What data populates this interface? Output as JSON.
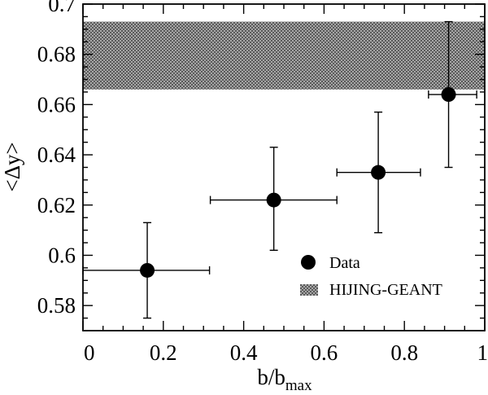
{
  "chart_data": {
    "type": "scatter",
    "xlabel": "b/b",
    "xlabel_sub": "max",
    "ylabel": "<Δy>",
    "xlim": [
      0,
      1
    ],
    "ylim": [
      0.57,
      0.7
    ],
    "xticks": [
      0,
      0.2,
      0.4,
      0.6,
      0.8,
      1
    ],
    "xtick_labels": [
      "0",
      "0.2",
      "0.4",
      "0.6",
      "0.8",
      "1"
    ],
    "yticks": [
      0.58,
      0.6,
      0.62,
      0.64,
      0.66,
      0.68,
      0.7
    ],
    "ytick_labels": [
      "0.58",
      "0.6",
      "0.62",
      "0.64",
      "0.66",
      "0.68",
      "0.7"
    ],
    "grid": false,
    "legend_position": "bottom-right",
    "series": [
      {
        "name": "Data",
        "marker": "filled-circle",
        "color": "#000000",
        "points": [
          {
            "x": 0.16,
            "y": 0.594,
            "x_lo": 0.0,
            "x_hi": 0.315,
            "y_lo": 0.575,
            "y_hi": 0.613
          },
          {
            "x": 0.475,
            "y": 0.622,
            "x_lo": 0.317,
            "x_hi": 0.632,
            "y_lo": 0.602,
            "y_hi": 0.643
          },
          {
            "x": 0.735,
            "y": 0.633,
            "x_lo": 0.632,
            "x_hi": 0.84,
            "y_lo": 0.609,
            "y_hi": 0.657
          },
          {
            "x": 0.91,
            "y": 0.664,
            "x_lo": 0.86,
            "x_hi": 0.98,
            "y_lo": 0.635,
            "y_hi": 0.693
          }
        ]
      },
      {
        "name": "HIJING-GEANT",
        "type": "band",
        "fill": "hatched",
        "color": "#6a6a6a",
        "x_range": [
          0,
          1
        ],
        "y_lo": 0.666,
        "y_hi": 0.693
      }
    ]
  }
}
